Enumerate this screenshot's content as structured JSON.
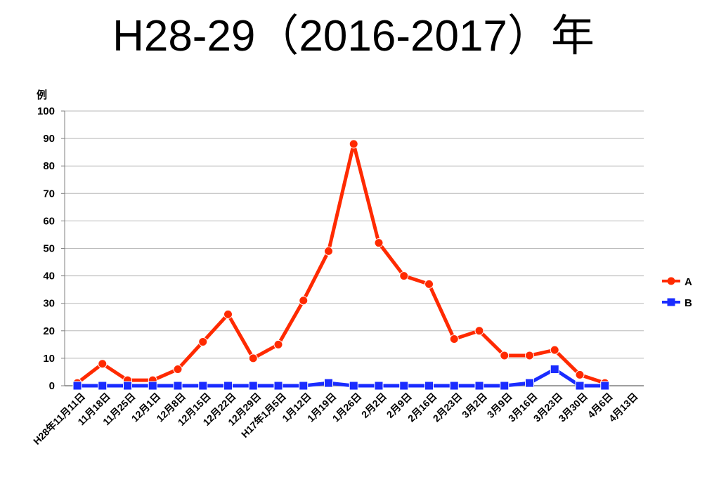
{
  "chart_data": {
    "type": "line",
    "title": "H28-29（2016-2017）年",
    "ylabel": "例",
    "xlabel": "",
    "ylim": [
      0,
      100
    ],
    "yticks": [
      0,
      10,
      20,
      30,
      40,
      50,
      60,
      70,
      80,
      90,
      100
    ],
    "grid": true,
    "legend_position": "right",
    "categories": [
      "H28年11月11日",
      "11月18日",
      "11月25日",
      "12月1日",
      "12月8日",
      "12月15日",
      "12月22日",
      "12月29日",
      "H17年1月5日",
      "1月12日",
      "1月19日",
      "1月26日",
      "2月2日",
      "2月9日",
      "2月16日",
      "2月23日",
      "3月2日",
      "3月9日",
      "3月16日",
      "3月23日",
      "3月30日",
      "4月6日",
      "4月13日"
    ],
    "series": [
      {
        "name": "A",
        "color": "#ff2a00",
        "marker": "circle",
        "values": [
          1,
          8,
          2,
          2,
          6,
          16,
          26,
          10,
          15,
          31,
          49,
          88,
          52,
          40,
          37,
          17,
          20,
          11,
          11,
          13,
          4,
          1,
          null
        ]
      },
      {
        "name": "B",
        "color": "#1a2cff",
        "marker": "square",
        "values": [
          0,
          0,
          0,
          0,
          0,
          0,
          0,
          0,
          0,
          0,
          1,
          0,
          0,
          0,
          0,
          0,
          0,
          0,
          1,
          6,
          0,
          0,
          null
        ]
      }
    ]
  }
}
